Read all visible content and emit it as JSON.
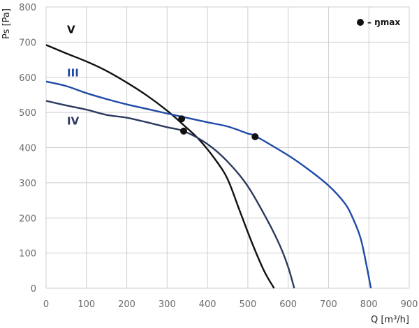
{
  "chart_data": {
    "type": "line",
    "xlabel": "Q [m³/h]",
    "ylabel": "Ps [Pa]",
    "xlim": [
      0,
      900
    ],
    "ylim": [
      0,
      800
    ],
    "xticks": [
      0,
      100,
      200,
      300,
      400,
      500,
      600,
      700,
      800,
      900
    ],
    "yticks": [
      0,
      100,
      200,
      300,
      400,
      500,
      600,
      700,
      800
    ],
    "grid": true,
    "legend": {
      "label": "– ŋmax",
      "placement": "top-right"
    },
    "colors": {
      "V": "#111111",
      "III": "#1f4aa8",
      "IV": "#2b3a5e",
      "grid": "#cfcfcf"
    },
    "series": [
      {
        "name": "V",
        "label_pos": [
          52,
          735
        ],
        "x": [
          0,
          50,
          100,
          150,
          200,
          250,
          300,
          340,
          380,
          420,
          450,
          480,
          510,
          540,
          565
        ],
        "y": [
          692,
          668,
          645,
          618,
          585,
          548,
          505,
          465,
          422,
          365,
          310,
          220,
          130,
          50,
          0
        ]
      },
      {
        "name": "III",
        "label_pos": [
          52,
          612
        ],
        "x": [
          0,
          50,
          100,
          150,
          200,
          250,
          300,
          340,
          400,
          450,
          500,
          520,
          600,
          650,
          700,
          740,
          760,
          780,
          795,
          805
        ],
        "y": [
          588,
          575,
          555,
          538,
          523,
          510,
          497,
          487,
          472,
          460,
          440,
          432,
          378,
          338,
          292,
          242,
          200,
          140,
          60,
          0
        ]
      },
      {
        "name": "IV",
        "label_pos": [
          52,
          475
        ],
        "x": [
          0,
          50,
          100,
          150,
          200,
          250,
          300,
          343,
          400,
          450,
          500,
          550,
          580,
          600,
          615
        ],
        "y": [
          533,
          520,
          508,
          493,
          485,
          472,
          458,
          446,
          410,
          360,
          290,
          190,
          120,
          60,
          0
        ]
      }
    ],
    "markers": [
      {
        "series": "V",
        "x": 336,
        "y": 482
      },
      {
        "series": "IV",
        "x": 341,
        "y": 447
      },
      {
        "series": "III",
        "x": 518,
        "y": 431
      }
    ]
  }
}
